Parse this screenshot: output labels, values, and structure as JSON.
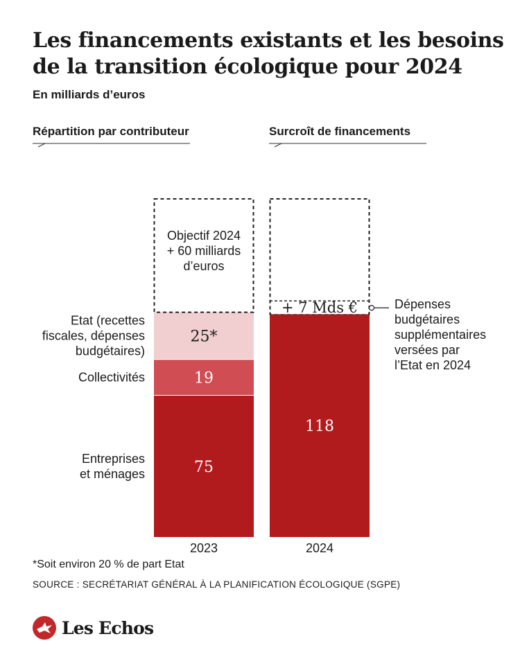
{
  "title": "Les financements existants et les besoins de la transition écologique pour 2024",
  "subtitle": "En milliards d’euros",
  "sections": {
    "left_header": "Répartition par contributeur",
    "right_header": "Surcroît de financements"
  },
  "chart_data": {
    "type": "bar",
    "stacked": true,
    "categories": [
      "2023",
      "2024"
    ],
    "series": [
      {
        "name": "Entreprises et ménages",
        "values": [
          75,
          null
        ],
        "display": [
          "75",
          null
        ],
        "color": "#b11b1e"
      },
      {
        "name": "Collectivités",
        "values": [
          19,
          null
        ],
        "display": [
          "19",
          null
        ],
        "color": "#d04d53"
      },
      {
        "name": "Etat (recettes fiscales, dépenses budgétaires)",
        "values": [
          25,
          null
        ],
        "display": [
          "25*",
          null
        ],
        "color": "#f1cfd0"
      },
      {
        "name": "",
        "values": [
          null,
          118
        ],
        "display": [
          null,
          "118"
        ],
        "color": "#b11b1e"
      }
    ],
    "objective": {
      "category": "2023",
      "value": 60,
      "label": "Objectif 2024 + 60 milliards d’euros"
    },
    "increment": {
      "category": "2024",
      "value": 7,
      "label": "+ 7 Mds €",
      "annotation": "Dépenses budgétaires supplémentaires versées par l’Etat en 2024"
    },
    "total_target": 179,
    "xlabel": "",
    "ylabel": "",
    "ylim": [
      0,
      179
    ],
    "grid": false,
    "legend": "inline-left"
  },
  "footnote": "*Soit environ 20 % de part Etat",
  "source": "SOURCE : SECRÉTARIAT GÉNÉRAL À LA PLANIFICATION ÉCOLOGIQUE (SGPE)",
  "brand": "Les Echos",
  "colors": {
    "dark_red": "#b11b1e",
    "mid_red": "#d04d53",
    "light_pink": "#f1cfd0",
    "dashed": "#222222"
  }
}
